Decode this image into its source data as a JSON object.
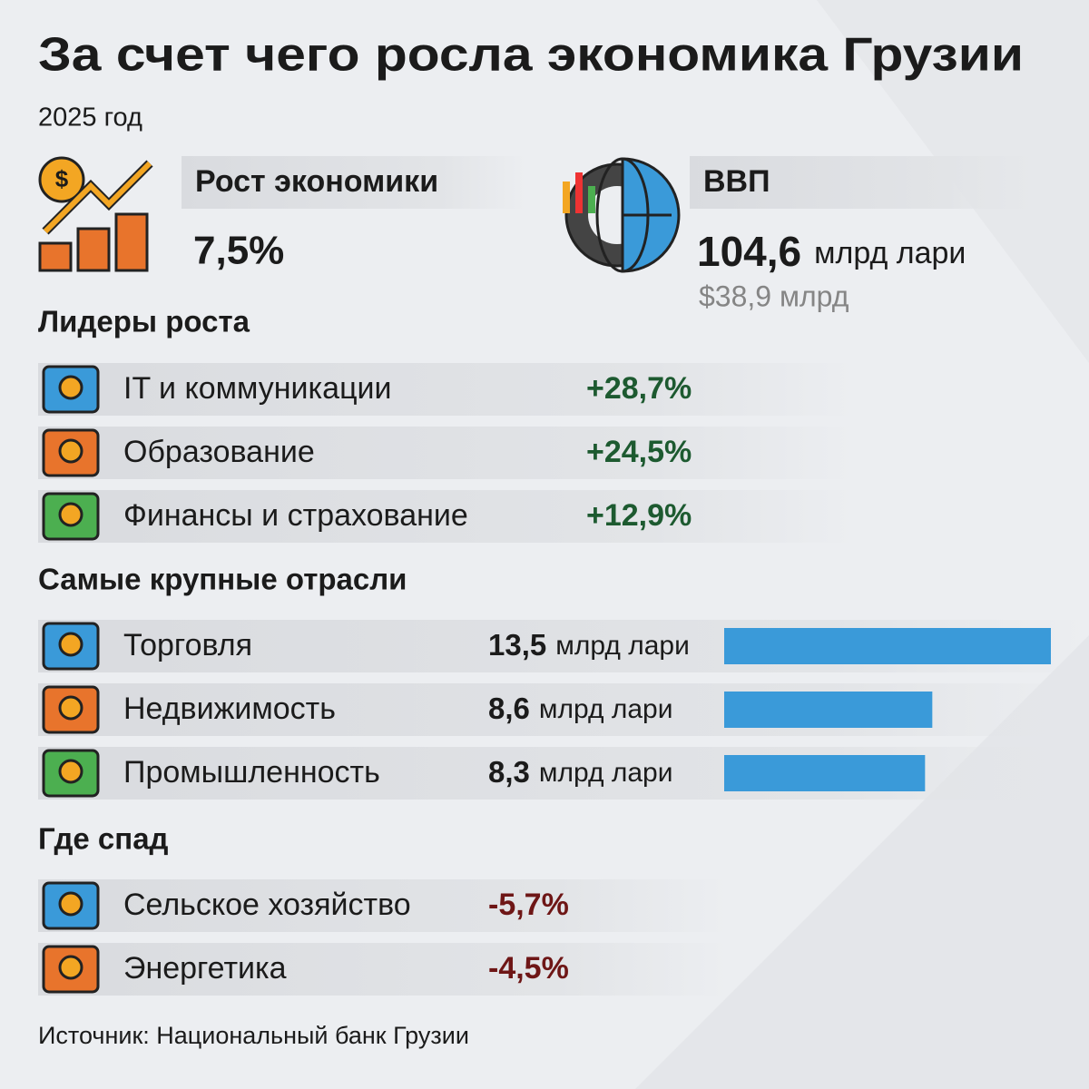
{
  "header": {
    "title": "За счет чего росла экономика Грузии",
    "subtitle": "2025 год"
  },
  "growth": {
    "label": "Рост экономики",
    "value": "7,5%"
  },
  "gdp": {
    "label": "ВВП",
    "value": "104,6",
    "unit": "млрд лари",
    "usd": "$38,9 млрд"
  },
  "leaders": {
    "title": "Лидеры роста",
    "items": [
      {
        "name": "IT и коммуникации",
        "value": "+28,7%"
      },
      {
        "name": "Образование",
        "value": "+24,5%"
      },
      {
        "name": "Финансы и страхование",
        "value": "+12,9%"
      }
    ]
  },
  "sectors": {
    "title": "Самые крупные отрасли",
    "items": [
      {
        "name": "Торговля",
        "value": 13.5,
        "value_label": "13,5",
        "unit": "млрд лари"
      },
      {
        "name": "Недвижимость",
        "value": 8.6,
        "value_label": "8,6",
        "unit": "млрд лари"
      },
      {
        "name": "Промышленность",
        "value": 8.3,
        "value_label": "8,3",
        "unit": "млрд лари"
      }
    ]
  },
  "decline": {
    "title": "Где спад",
    "items": [
      {
        "name": "Сельское хозяйство",
        "value": "-5,7%"
      },
      {
        "name": "Энергетика",
        "value": "-4,5%"
      }
    ]
  },
  "source": "Источник: Национальный банк Грузии"
}
